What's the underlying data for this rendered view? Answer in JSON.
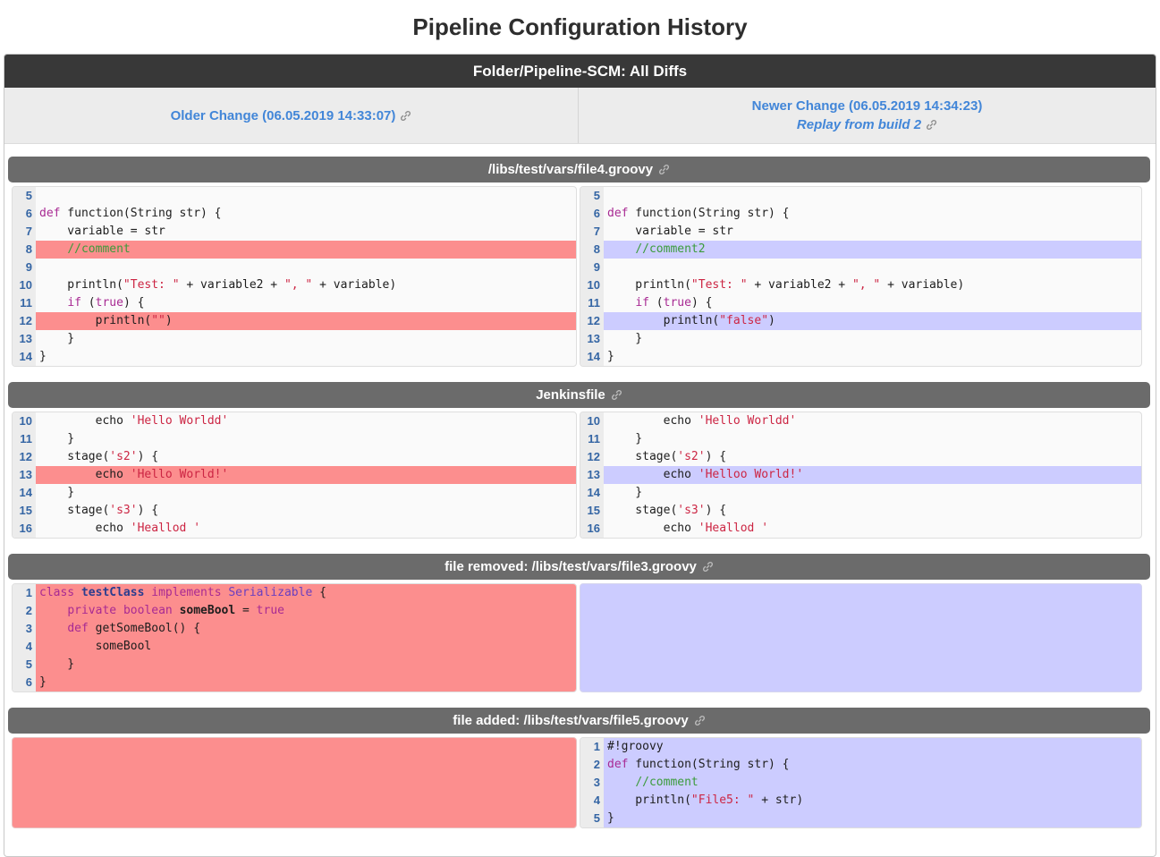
{
  "page_title": "Pipeline Configuration History",
  "banner": {
    "title": "Folder/Pipeline-SCM: All Diffs"
  },
  "nav": {
    "older_label": "Older Change (06.05.2019 14:33:07)",
    "newer_label": "Newer Change (06.05.2019 14:34:23)",
    "replay_label": "Replay from build 2"
  },
  "icons": {
    "link": "chain-link-icon"
  },
  "colors": {
    "removed_bg": "#fc8e8e",
    "added_bg": "#ccccff",
    "banner_bg": "#383838",
    "section_header_bg": "#6b6b6b",
    "link_blue": "#4286d8",
    "line_number_blue": "#3465a4"
  },
  "sections": [
    {
      "title": "/libs/test/vars/file4.groovy",
      "left": {
        "lines": [
          {
            "n": 5,
            "hl": null,
            "toks": []
          },
          {
            "n": 6,
            "hl": null,
            "toks": [
              {
                "t": "def",
                "c": "k"
              },
              {
                "t": " function(String str) {"
              }
            ]
          },
          {
            "n": 7,
            "hl": null,
            "toks": [
              {
                "t": "    variable = str"
              }
            ]
          },
          {
            "n": 8,
            "hl": "del",
            "toks": [
              {
                "t": "    "
              },
              {
                "t": "//comment",
                "c": "c"
              }
            ]
          },
          {
            "n": 9,
            "hl": null,
            "toks": []
          },
          {
            "n": 10,
            "hl": null,
            "toks": [
              {
                "t": "    println("
              },
              {
                "t": "\"Test: \"",
                "c": "s"
              },
              {
                "t": " + variable2 + "
              },
              {
                "t": "\", \"",
                "c": "s"
              },
              {
                "t": " + variable)"
              }
            ]
          },
          {
            "n": 11,
            "hl": null,
            "toks": [
              {
                "t": "    "
              },
              {
                "t": "if",
                "c": "k"
              },
              {
                "t": " ("
              },
              {
                "t": "true",
                "c": "k"
              },
              {
                "t": ") {"
              }
            ]
          },
          {
            "n": 12,
            "hl": "del",
            "toks": [
              {
                "t": "        println("
              },
              {
                "t": "\"\"",
                "c": "s"
              },
              {
                "t": ")"
              }
            ]
          },
          {
            "n": 13,
            "hl": null,
            "toks": [
              {
                "t": "    }"
              }
            ]
          },
          {
            "n": 14,
            "hl": null,
            "toks": [
              {
                "t": "}"
              }
            ]
          }
        ]
      },
      "right": {
        "lines": [
          {
            "n": 5,
            "hl": null,
            "toks": []
          },
          {
            "n": 6,
            "hl": null,
            "toks": [
              {
                "t": "def",
                "c": "k"
              },
              {
                "t": " function(String str) {"
              }
            ]
          },
          {
            "n": 7,
            "hl": null,
            "toks": [
              {
                "t": "    variable = str"
              }
            ]
          },
          {
            "n": 8,
            "hl": "add",
            "toks": [
              {
                "t": "    "
              },
              {
                "t": "//comment2",
                "c": "c"
              }
            ]
          },
          {
            "n": 9,
            "hl": null,
            "toks": []
          },
          {
            "n": 10,
            "hl": null,
            "toks": [
              {
                "t": "    println("
              },
              {
                "t": "\"Test: \"",
                "c": "s"
              },
              {
                "t": " + variable2 + "
              },
              {
                "t": "\", \"",
                "c": "s"
              },
              {
                "t": " + variable)"
              }
            ]
          },
          {
            "n": 11,
            "hl": null,
            "toks": [
              {
                "t": "    "
              },
              {
                "t": "if",
                "c": "k"
              },
              {
                "t": " ("
              },
              {
                "t": "true",
                "c": "k"
              },
              {
                "t": ") {"
              }
            ]
          },
          {
            "n": 12,
            "hl": "add",
            "toks": [
              {
                "t": "        println("
              },
              {
                "t": "\"false\"",
                "c": "s"
              },
              {
                "t": ")"
              }
            ]
          },
          {
            "n": 13,
            "hl": null,
            "toks": [
              {
                "t": "    }"
              }
            ]
          },
          {
            "n": 14,
            "hl": null,
            "toks": [
              {
                "t": "}"
              }
            ]
          }
        ]
      }
    },
    {
      "title": "Jenkinsfile",
      "left": {
        "lines": [
          {
            "n": 10,
            "hl": null,
            "toks": [
              {
                "t": "        echo "
              },
              {
                "t": "'Hello Worldd'",
                "c": "s"
              }
            ]
          },
          {
            "n": 11,
            "hl": null,
            "toks": [
              {
                "t": "    }"
              }
            ]
          },
          {
            "n": 12,
            "hl": null,
            "toks": [
              {
                "t": "    stage("
              },
              {
                "t": "'s2'",
                "c": "s"
              },
              {
                "t": ") {"
              }
            ]
          },
          {
            "n": 13,
            "hl": "del",
            "toks": [
              {
                "t": "        echo "
              },
              {
                "t": "'Hello World!'",
                "c": "s"
              }
            ]
          },
          {
            "n": 14,
            "hl": null,
            "toks": [
              {
                "t": "    }"
              }
            ]
          },
          {
            "n": 15,
            "hl": null,
            "toks": [
              {
                "t": "    stage("
              },
              {
                "t": "'s3'",
                "c": "s"
              },
              {
                "t": ") {"
              }
            ]
          },
          {
            "n": 16,
            "hl": null,
            "toks": [
              {
                "t": "        echo "
              },
              {
                "t": "'Heallod '",
                "c": "s"
              }
            ]
          }
        ]
      },
      "right": {
        "lines": [
          {
            "n": 10,
            "hl": null,
            "toks": [
              {
                "t": "        echo "
              },
              {
                "t": "'Hello Worldd'",
                "c": "s"
              }
            ]
          },
          {
            "n": 11,
            "hl": null,
            "toks": [
              {
                "t": "    }"
              }
            ]
          },
          {
            "n": 12,
            "hl": null,
            "toks": [
              {
                "t": "    stage("
              },
              {
                "t": "'s2'",
                "c": "s"
              },
              {
                "t": ") {"
              }
            ]
          },
          {
            "n": 13,
            "hl": "add",
            "toks": [
              {
                "t": "        echo "
              },
              {
                "t": "'Helloo World!'",
                "c": "s"
              }
            ]
          },
          {
            "n": 14,
            "hl": null,
            "toks": [
              {
                "t": "    }"
              }
            ]
          },
          {
            "n": 15,
            "hl": null,
            "toks": [
              {
                "t": "    stage("
              },
              {
                "t": "'s3'",
                "c": "s"
              },
              {
                "t": ") {"
              }
            ]
          },
          {
            "n": 16,
            "hl": null,
            "toks": [
              {
                "t": "        echo "
              },
              {
                "t": "'Heallod '",
                "c": "s"
              }
            ]
          }
        ]
      }
    },
    {
      "title": "file removed: /libs/test/vars/file3.groovy",
      "left": {
        "lines": [
          {
            "n": 1,
            "hl": "del",
            "toks": [
              {
                "t": "class",
                "c": "k"
              },
              {
                "t": " "
              },
              {
                "t": "testClass",
                "c": "n"
              },
              {
                "t": " "
              },
              {
                "t": "implements",
                "c": "k"
              },
              {
                "t": " "
              },
              {
                "t": "Serializable",
                "c": "y"
              },
              {
                "t": " {"
              }
            ]
          },
          {
            "n": 2,
            "hl": "del",
            "toks": [
              {
                "t": "    "
              },
              {
                "t": "private",
                "c": "k"
              },
              {
                "t": " "
              },
              {
                "t": "boolean",
                "c": "k"
              },
              {
                "t": " "
              },
              {
                "t": "someBool",
                "c": "b"
              },
              {
                "t": " = "
              },
              {
                "t": "true",
                "c": "k"
              }
            ]
          },
          {
            "n": 3,
            "hl": "del",
            "toks": [
              {
                "t": "    "
              },
              {
                "t": "def",
                "c": "k"
              },
              {
                "t": " getSomeBool() {"
              }
            ]
          },
          {
            "n": 4,
            "hl": "del",
            "toks": [
              {
                "t": "        someBool"
              }
            ]
          },
          {
            "n": 5,
            "hl": "del",
            "toks": [
              {
                "t": "    }"
              }
            ]
          },
          {
            "n": 6,
            "hl": "del",
            "toks": [
              {
                "t": "}"
              }
            ]
          }
        ]
      },
      "right": {
        "fill": "added"
      }
    },
    {
      "title": "file added: /libs/test/vars/file5.groovy",
      "left": {
        "fill": "removed"
      },
      "right": {
        "lines": [
          {
            "n": 1,
            "hl": "add",
            "toks": [
              {
                "t": "#!groovy"
              }
            ]
          },
          {
            "n": 2,
            "hl": "add",
            "toks": [
              {
                "t": "def",
                "c": "k"
              },
              {
                "t": " function(String str) {"
              }
            ]
          },
          {
            "n": 3,
            "hl": "add",
            "toks": [
              {
                "t": "    "
              },
              {
                "t": "//comment",
                "c": "c"
              }
            ]
          },
          {
            "n": 4,
            "hl": "add",
            "toks": [
              {
                "t": "    println("
              },
              {
                "t": "\"File5: \"",
                "c": "s"
              },
              {
                "t": " + str)"
              }
            ]
          },
          {
            "n": 5,
            "hl": "add",
            "toks": [
              {
                "t": "}"
              }
            ]
          }
        ]
      }
    }
  ]
}
